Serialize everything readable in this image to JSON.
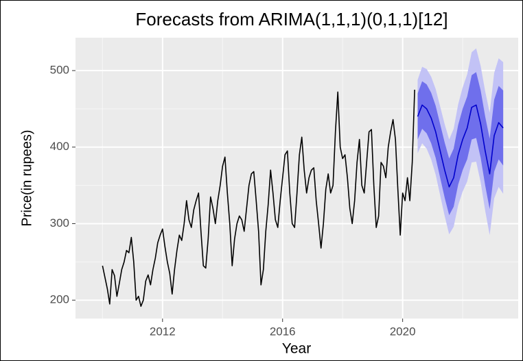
{
  "chart_data": {
    "type": "line",
    "title": "Forecasts from ARIMA(1,1,1)(0,1,1)[12]",
    "x_label": "Year",
    "y_label": "Price(in rupees)",
    "xlim": [
      2009.1,
      2023.85
    ],
    "ylim": [
      176,
      543
    ],
    "xticks": [
      2012,
      2016,
      2020
    ],
    "yticks": [
      200,
      300,
      400,
      500
    ],
    "grid": true,
    "series": [
      {
        "color": "#000000",
        "x": [
          2010,
          2010.08,
          2010.16,
          2010.24,
          2010.32,
          2010.4,
          2010.48,
          2010.56,
          2010.64,
          2010.72,
          2010.8,
          2010.88,
          2010.96,
          2011.04,
          2011.12,
          2011.2,
          2011.28,
          2011.36,
          2011.44,
          2011.52,
          2011.6,
          2011.68,
          2011.76,
          2011.84,
          2011.92,
          2012,
          2012.08,
          2012.16,
          2012.24,
          2012.32,
          2012.4,
          2012.48,
          2012.56,
          2012.64,
          2012.72,
          2012.8,
          2012.88,
          2012.96,
          2013.04,
          2013.12,
          2013.2,
          2013.28,
          2013.36,
          2013.44,
          2013.52,
          2013.6,
          2013.68,
          2013.76,
          2013.84,
          2013.92,
          2014,
          2014.08,
          2014.16,
          2014.24,
          2014.32,
          2014.4,
          2014.48,
          2014.56,
          2014.64,
          2014.72,
          2014.8,
          2014.88,
          2014.96,
          2015.04,
          2015.12,
          2015.2,
          2015.28,
          2015.36,
          2015.44,
          2015.52,
          2015.6,
          2015.68,
          2015.76,
          2015.84,
          2015.92,
          2016,
          2016.08,
          2016.16,
          2016.24,
          2016.32,
          2016.4,
          2016.48,
          2016.56,
          2016.64,
          2016.72,
          2016.8,
          2016.88,
          2016.96,
          2017.04,
          2017.12,
          2017.2,
          2017.28,
          2017.36,
          2017.44,
          2017.52,
          2017.6,
          2017.68,
          2017.76,
          2017.84,
          2017.92,
          2018,
          2018.08,
          2018.16,
          2018.24,
          2018.32,
          2018.4,
          2018.48,
          2018.56,
          2018.64,
          2018.72,
          2018.8,
          2018.88,
          2018.96,
          2019.04,
          2019.12,
          2019.2,
          2019.28,
          2019.36,
          2019.44,
          2019.52,
          2019.6,
          2019.68,
          2019.76,
          2019.84,
          2019.92,
          2020,
          2020.08,
          2020.16,
          2020.24,
          2020.32,
          2020.4
        ],
        "values": [
          245,
          230,
          215,
          195,
          240,
          232,
          205,
          222,
          240,
          250,
          265,
          262,
          282,
          250,
          200,
          205,
          192,
          200,
          225,
          233,
          220,
          240,
          255,
          275,
          285,
          293,
          270,
          250,
          235,
          208,
          240,
          265,
          285,
          278,
          300,
          330,
          305,
          295,
          318,
          330,
          340,
          290,
          245,
          242,
          280,
          335,
          320,
          300,
          330,
          350,
          375,
          387,
          340,
          300,
          245,
          280,
          300,
          310,
          305,
          290,
          320,
          350,
          365,
          368,
          330,
          290,
          220,
          240,
          290,
          325,
          370,
          340,
          305,
          295,
          330,
          360,
          390,
          395,
          340,
          300,
          295,
          340,
          390,
          413,
          370,
          340,
          360,
          370,
          373,
          330,
          300,
          268,
          300,
          345,
          365,
          340,
          350,
          420,
          472,
          400,
          385,
          390,
          360,
          320,
          300,
          330,
          380,
          410,
          350,
          340,
          380,
          420,
          423,
          350,
          295,
          310,
          380,
          375,
          360,
          400,
          420,
          436,
          410,
          345,
          285,
          340,
          330,
          360,
          330,
          380,
          475
        ]
      },
      {
        "color": "#0000cc",
        "x": [
          2020.5,
          2020.65,
          2020.8,
          2020.95,
          2021.1,
          2021.25,
          2021.4,
          2021.55,
          2021.7,
          2021.85,
          2022,
          2022.15,
          2022.3,
          2022.45,
          2022.6,
          2022.75,
          2022.9,
          2023.05,
          2023.2,
          2023.35
        ],
        "values": [
          440,
          455,
          450,
          438,
          420,
          395,
          370,
          348,
          360,
          390,
          410,
          425,
          452,
          455,
          430,
          395,
          365,
          415,
          432,
          425
        ]
      }
    ],
    "bands": [
      {
        "color": "#c2c2f6",
        "lower": [
          392,
          405,
          398,
          384,
          364,
          337,
          310,
          286,
          296,
          324,
          342,
          355,
          380,
          381,
          354,
          317,
          285,
          333,
          348,
          339
        ],
        "upper": [
          488,
          505,
          502,
          492,
          476,
          453,
          430,
          410,
          424,
          456,
          478,
          495,
          524,
          529,
          506,
          473,
          445,
          497,
          516,
          511
        ]
      },
      {
        "color": "#6f6fec",
        "lower": [
          410,
          424,
          418,
          405,
          386,
          360,
          334,
          311,
          322,
          351,
          370,
          384,
          410,
          412,
          386,
          350,
          319,
          368,
          384,
          376
        ],
        "upper": [
          470,
          486,
          482,
          471,
          454,
          430,
          406,
          385,
          398,
          429,
          450,
          466,
          494,
          498,
          474,
          440,
          411,
          462,
          480,
          474
        ]
      }
    ]
  }
}
